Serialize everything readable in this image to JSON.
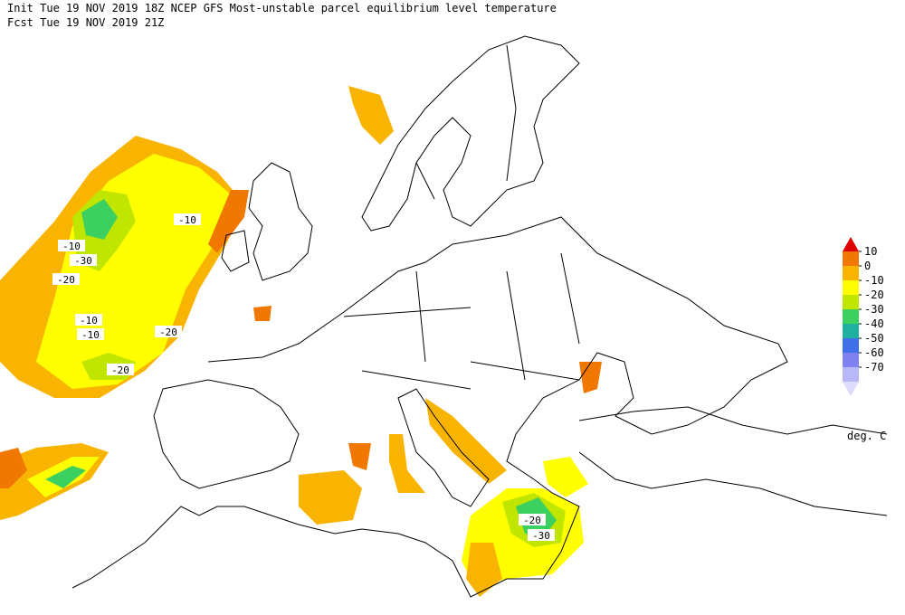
{
  "header": {
    "line1": "Init  Tue 19 NOV 2019 18Z  NCEP GFS Most-unstable parcel equilibrium level temperature",
    "line2": "Fcst Tue 19 NOV 2019 21Z"
  },
  "legend": {
    "unit": "deg. C",
    "levels": [
      10,
      0,
      -10,
      -20,
      -30,
      -40,
      -50,
      -60,
      -70
    ],
    "colors": [
      "#e00000",
      "#f07800",
      "#f8b400",
      "#ffff00",
      "#c0e600",
      "#3cd060",
      "#20b0a0",
      "#4070e8",
      "#8080f0",
      "#b8b8f8",
      "#dcdcfc"
    ]
  },
  "contour_labels": [
    -10,
    -10,
    -30,
    -20,
    -10,
    -10,
    -20,
    -20,
    -20,
    -30
  ]
}
